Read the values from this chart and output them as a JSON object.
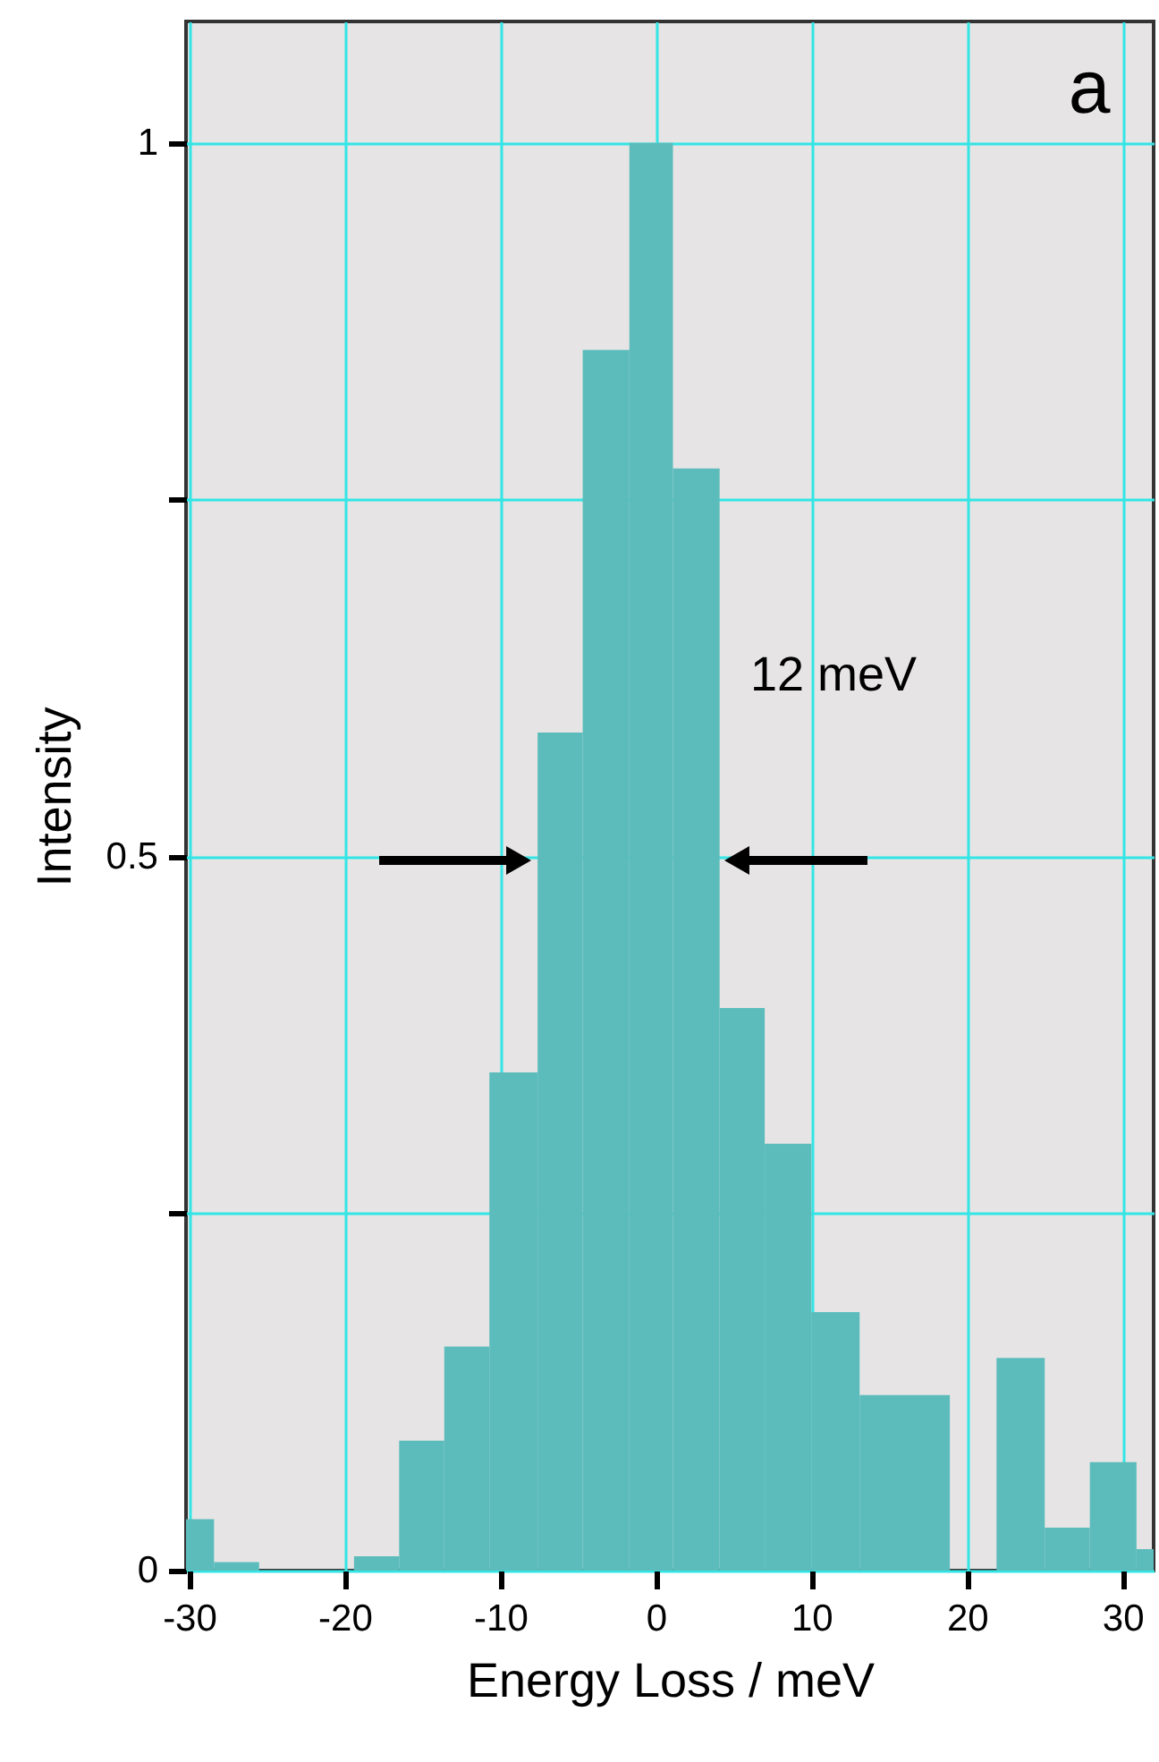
{
  "chart_data": {
    "type": "histogram",
    "xlabel": "Energy Loss / meV",
    "ylabel": "Intensity",
    "annotations": [
      "a",
      "12 meV"
    ],
    "bins": [
      -31.3,
      -28.4,
      -25.5,
      -19.4,
      -16.5,
      -13.6,
      -10.7,
      -7.6,
      -4.7,
      -1.7,
      1.1,
      4.1,
      7.0,
      10.0,
      13.1,
      18.9,
      21.9,
      25.0,
      27.9,
      30.9,
      33.8
    ],
    "values": [
      0.036,
      0.006,
      0,
      0.01,
      0.091,
      0.157,
      0.349,
      0.587,
      0.855,
      1.0,
      0.772,
      0.394,
      0.299,
      0.181,
      0.123,
      0,
      0.149,
      0.03,
      0.076,
      0.015
    ],
    "color": "#5cbcbc",
    "xlim": [
      -30.2,
      32
    ],
    "xticks": [
      -30,
      -20,
      -10,
      0,
      10,
      20,
      30
    ],
    "ylim": [
      0,
      1.085
    ],
    "yticks": [
      0,
      {
        "value": 0.25,
        "label": null
      },
      0.5,
      {
        "value": 0.75,
        "label": null
      },
      1
    ],
    "grid": true
  }
}
